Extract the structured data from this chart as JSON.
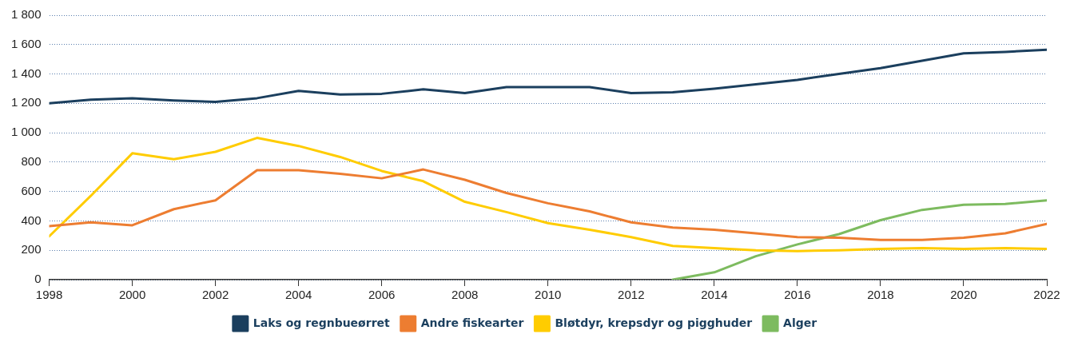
{
  "chart_data": {
    "type": "line",
    "x": [
      1998,
      1999,
      2000,
      2001,
      2002,
      2003,
      2004,
      2005,
      2006,
      2007,
      2008,
      2009,
      2010,
      2011,
      2012,
      2013,
      2014,
      2015,
      2016,
      2017,
      2018,
      2019,
      2020,
      2021,
      2022
    ],
    "series": [
      {
        "name": "Laks og regnbueørret",
        "color": "#1b3f5e",
        "values": [
          1200,
          1225,
          1235,
          1220,
          1210,
          1235,
          1285,
          1260,
          1265,
          1295,
          1270,
          1310,
          1310,
          1310,
          1270,
          1275,
          1300,
          1330,
          1360,
          1400,
          1440,
          1490,
          1540,
          1550,
          1565
        ]
      },
      {
        "name": "Andre fiskearter",
        "color": "#ed7d31",
        "values": [
          365,
          390,
          370,
          480,
          540,
          745,
          745,
          720,
          690,
          750,
          680,
          590,
          520,
          465,
          390,
          355,
          340,
          315,
          290,
          285,
          270,
          270,
          285,
          315,
          380
        ]
      },
      {
        "name": "Bløtdyr, krepsdyr og pigghuder",
        "color": "#ffcc00",
        "values": [
          295,
          570,
          860,
          820,
          870,
          965,
          910,
          835,
          740,
          670,
          530,
          460,
          385,
          340,
          290,
          230,
          215,
          200,
          195,
          200,
          210,
          215,
          210,
          215,
          210
        ]
      },
      {
        "name": "Alger",
        "color": "#7dbb5f",
        "values": [
          null,
          null,
          null,
          null,
          null,
          null,
          null,
          null,
          null,
          null,
          null,
          null,
          null,
          null,
          null,
          0,
          50,
          160,
          240,
          310,
          405,
          475,
          510,
          515,
          540
        ]
      }
    ],
    "xlim": [
      1998,
      2022
    ],
    "xticks": [
      1998,
      2000,
      2002,
      2004,
      2006,
      2008,
      2010,
      2012,
      2014,
      2016,
      2018,
      2020,
      2022
    ],
    "ylim": [
      0,
      1800
    ],
    "yticks": [
      0,
      200,
      400,
      600,
      800,
      {
        "value": 1000,
        "label": "1 000"
      },
      {
        "value": 1200,
        "label": "1 200"
      },
      {
        "value": 1400,
        "label": "1 400"
      },
      {
        "value": 1600,
        "label": "1 600"
      },
      {
        "value": 1800,
        "label": "1 800"
      }
    ],
    "grid": "y",
    "legend": "bottom",
    "marker": "none",
    "line_style": "solid"
  }
}
